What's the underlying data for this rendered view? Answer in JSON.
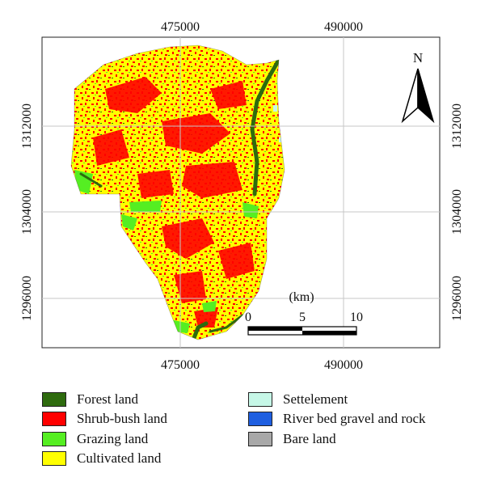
{
  "map": {
    "x_ticks": [
      "475000",
      "490000"
    ],
    "y_ticks": [
      "1312000",
      "1304000",
      "1296000"
    ],
    "north_label": "N",
    "scale": {
      "unit_label": "(km)",
      "ticks": [
        "0",
        "5",
        "10"
      ]
    }
  },
  "legend": [
    {
      "label": "Forest land",
      "color": "#2e6b0e"
    },
    {
      "label": "Shrub-bush land",
      "color": "#ff0000"
    },
    {
      "label": "Grazing land",
      "color": "#55ee22"
    },
    {
      "label": "Cultivated land",
      "color": "#ffff00"
    },
    {
      "label": "Settelement",
      "color": "#c6f7e7"
    },
    {
      "label": "River bed gravel and rock",
      "color": "#1f5fe0"
    },
    {
      "label": "Bare land",
      "color": "#a8a8a8"
    }
  ]
}
